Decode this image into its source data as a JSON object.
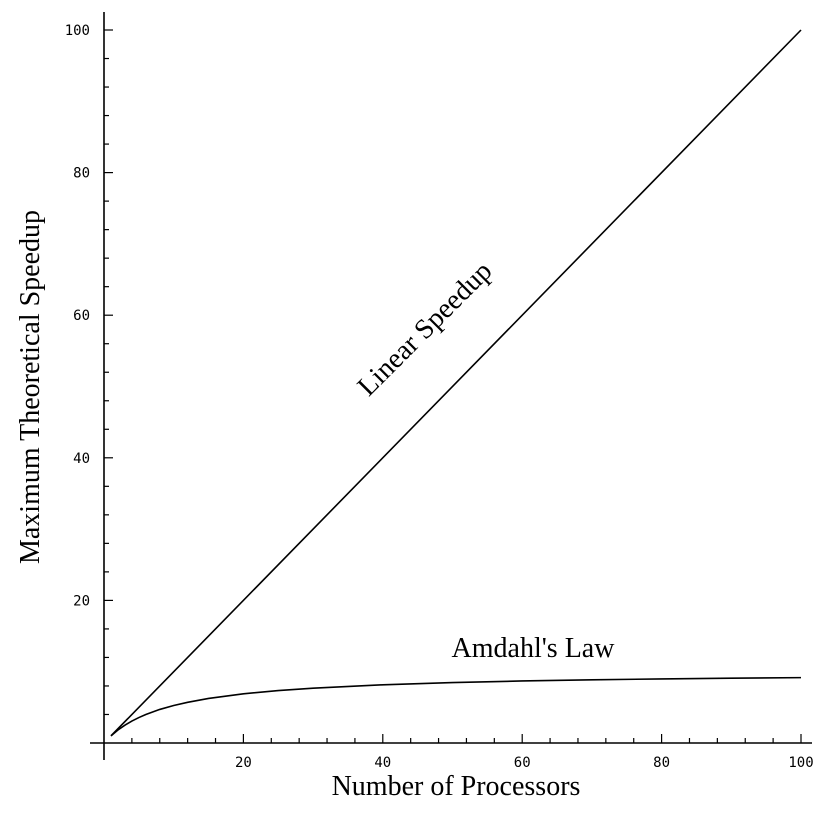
{
  "chart_data": {
    "type": "line",
    "title": "",
    "xlabel": "Number of Processors",
    "ylabel": "Maximum Theoretical Speedup",
    "xlim": [
      0,
      100
    ],
    "ylim": [
      0,
      100
    ],
    "xticks": [
      20,
      40,
      60,
      80,
      100
    ],
    "yticks": [
      20,
      40,
      60,
      80,
      100
    ],
    "grid": false,
    "series": [
      {
        "name": "Linear Speedup",
        "x": [
          1,
          100
        ],
        "y": [
          1,
          100
        ]
      },
      {
        "name": "Amdahl's Law",
        "x": [
          1,
          2,
          3,
          4,
          5,
          6,
          8,
          10,
          12,
          15,
          20,
          25,
          30,
          40,
          50,
          60,
          70,
          80,
          90,
          100
        ],
        "y": [
          1.0,
          1.82,
          2.5,
          3.08,
          3.57,
          4.0,
          4.71,
          5.26,
          5.71,
          6.25,
          6.9,
          7.35,
          7.69,
          8.16,
          8.47,
          8.7,
          8.86,
          8.99,
          9.09,
          9.17
        ]
      }
    ]
  }
}
